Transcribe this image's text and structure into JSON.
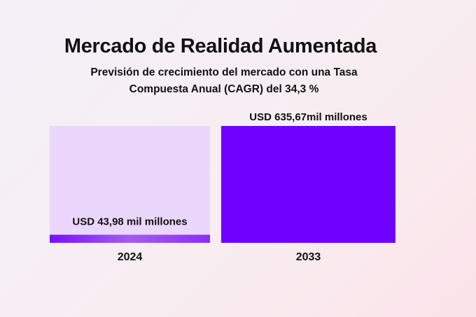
{
  "header": {
    "title": "Mercado de Realidad Aumentada",
    "subtitle_line1": "Previsión de crecimiento del mercado con una Tasa",
    "subtitle_line2": "Compuesta Anual (CAGR) del 34,3 %"
  },
  "chart_data": {
    "type": "bar",
    "title": "Mercado de Realidad Aumentada",
    "subtitle": "Previsión de crecimiento del mercado con una Tasa Compuesta Anual (CAGR) del 34,3 %",
    "categories": [
      "2024",
      "2033"
    ],
    "values": [
      43.98,
      635.67
    ],
    "value_labels": [
      "USD 43,98 mil millones",
      "USD  635,67mil millones"
    ],
    "ylim": [
      0,
      635.67
    ],
    "grid": false,
    "legend": "none",
    "colors": {
      "bar": "#7000ff",
      "bar_light": "#9a4cf2",
      "track": "#ead7fb"
    }
  }
}
